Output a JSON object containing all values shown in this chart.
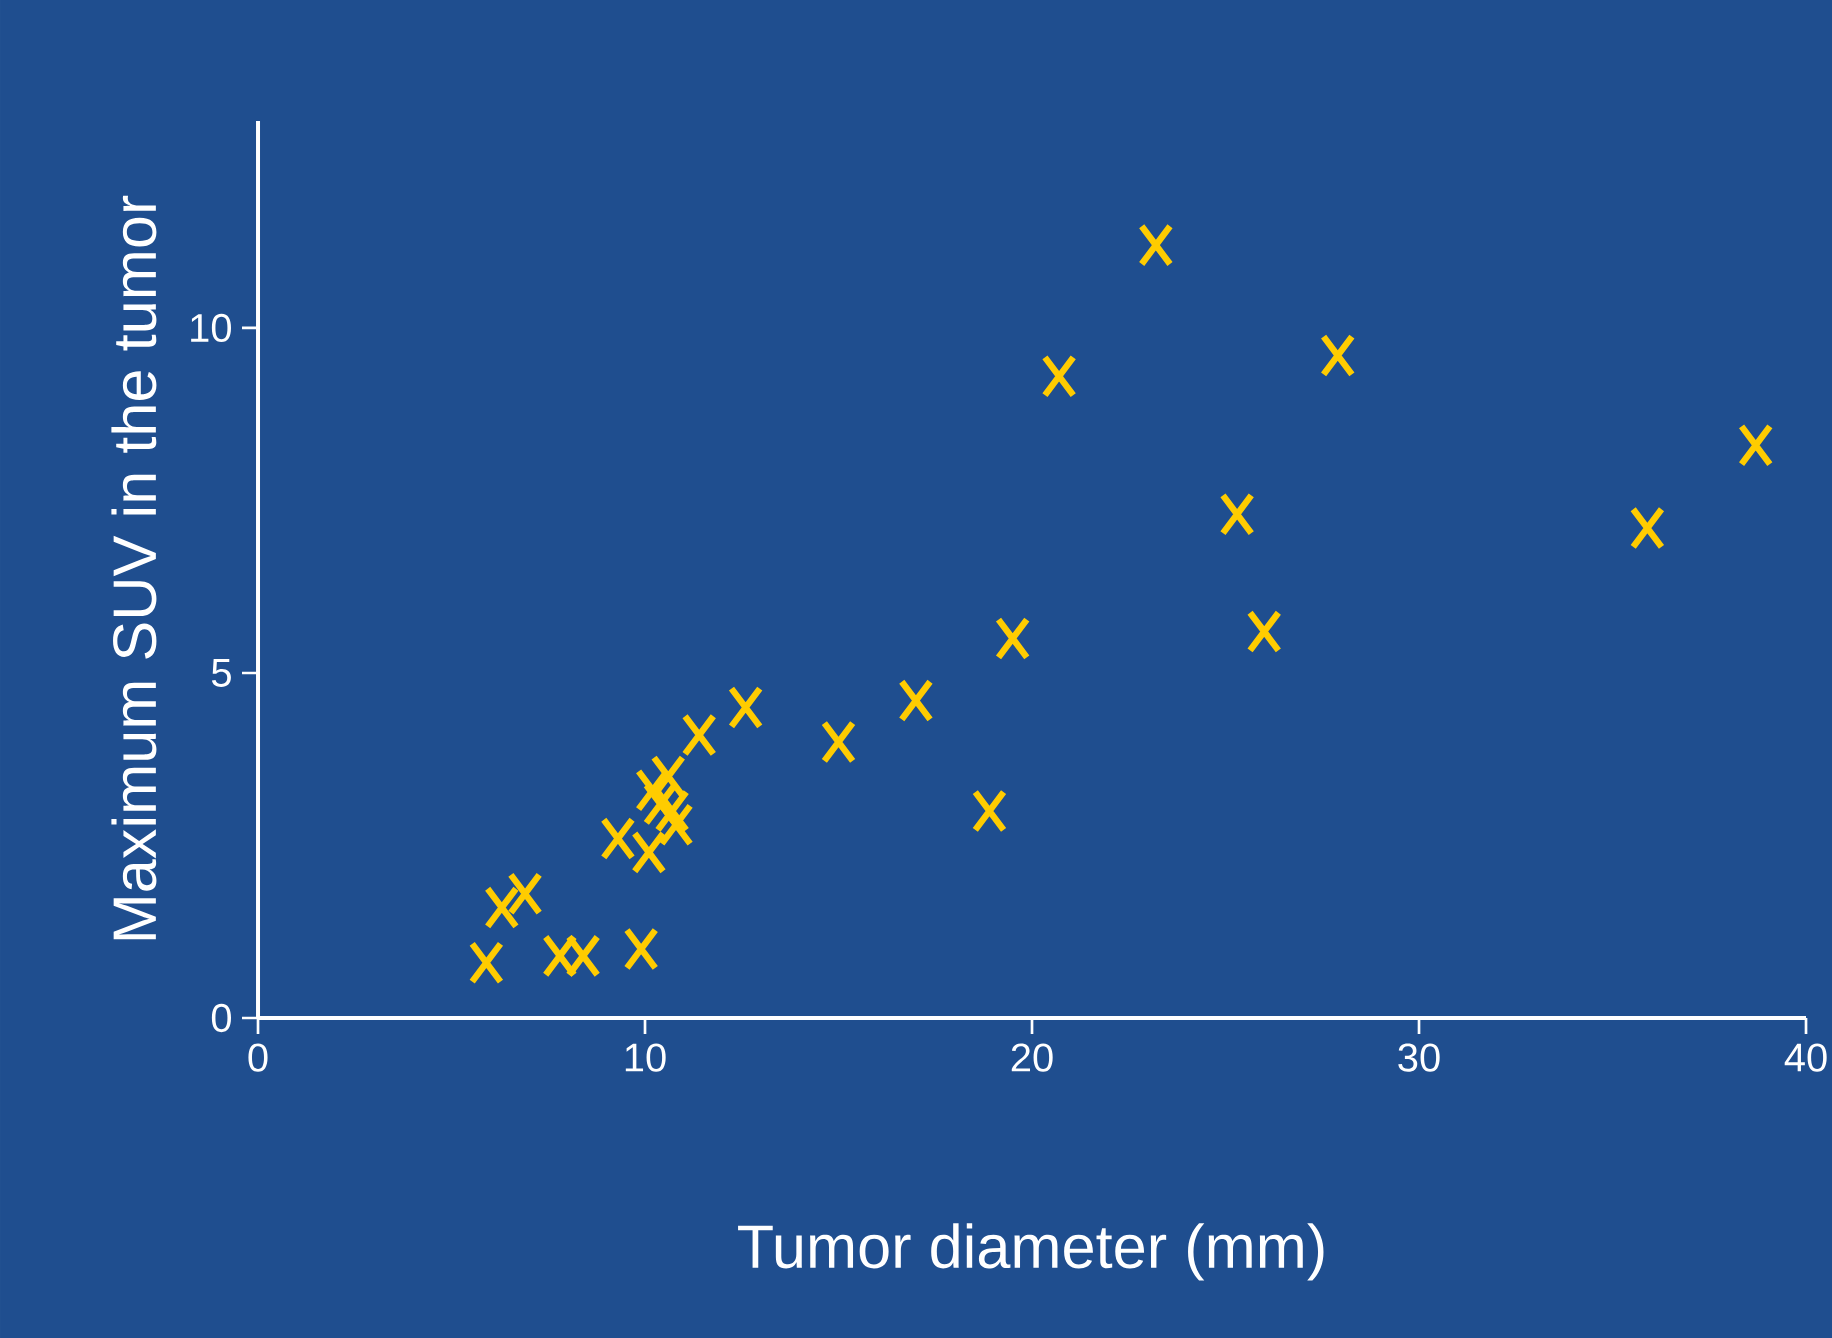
{
  "chart_data": {
    "type": "scatter",
    "xlabel": "Tumor diameter (mm)",
    "ylabel": "Maximum SUV in the tumor",
    "xlim": [
      0,
      40
    ],
    "ylim": [
      0,
      13
    ],
    "xticks": [
      0,
      10,
      20,
      30,
      40
    ],
    "yticks": [
      0,
      5,
      10
    ],
    "marker": "cross",
    "grid": false,
    "series": [
      {
        "color": "#ffcc00",
        "x": [
          5.9,
          6.3,
          6.9,
          7.8,
          8.4,
          9.9,
          9.3,
          10.1,
          10.2,
          10.6,
          10.7,
          10.8,
          10.4,
          11.4,
          12.6,
          15.0,
          17.0,
          18.9,
          19.5,
          20.7,
          23.2,
          25.3,
          26.0,
          27.9,
          35.9,
          38.7
        ],
        "values": [
          0.8,
          1.6,
          1.8,
          0.9,
          0.9,
          1.0,
          2.6,
          2.4,
          3.3,
          3.5,
          3.0,
          2.8,
          3.1,
          4.1,
          4.5,
          4.0,
          4.6,
          3.0,
          5.5,
          9.3,
          11.2,
          7.3,
          5.6,
          9.6,
          7.1,
          8.3
        ]
      }
    ]
  }
}
